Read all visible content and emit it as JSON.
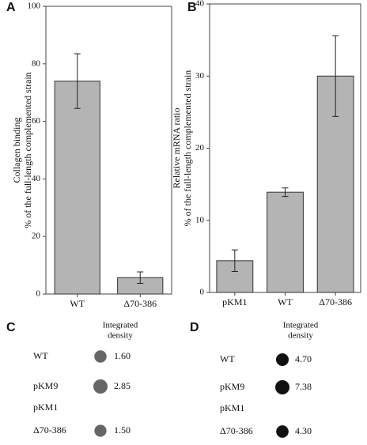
{
  "chart_data": [
    {
      "type": "bar",
      "panel": "A",
      "ylabel": [
        "Collagen binding",
        "% of the full-length complemented strain"
      ],
      "categories": [
        "WT",
        "Δ70-386"
      ],
      "values": [
        74,
        5.7
      ],
      "errors": [
        9.5,
        2
      ],
      "color": "#b4b4b4",
      "ylim": [
        0,
        100
      ],
      "yticks": [
        0,
        20,
        40,
        60,
        80,
        100
      ]
    },
    {
      "type": "bar",
      "panel": "B",
      "ylabel": [
        "Relative mRNA ratio",
        "% of the full-length complemented strain"
      ],
      "categories": [
        "pKM1",
        "WT",
        "Δ70-386"
      ],
      "values": [
        4.4,
        13.9,
        30
      ],
      "errors": [
        1.5,
        0.6,
        5.6
      ],
      "color": "#b4b4b4",
      "ylim": [
        0,
        40
      ],
      "yticks": [
        0,
        10,
        20,
        30,
        40
      ]
    }
  ],
  "blots": [
    {
      "panel": "C",
      "header": [
        "Integrated",
        "density"
      ],
      "labels": [
        "WT",
        "pKM9",
        "pKM1",
        "Δ70-386"
      ],
      "values": [
        1.6,
        2.85,
        null,
        1.5
      ],
      "value_labels": [
        "1.60",
        "2.85",
        null,
        "1.50"
      ],
      "color": "#666666"
    },
    {
      "panel": "D",
      "header": [
        "Integrated",
        "density"
      ],
      "labels": [
        "WT",
        "pKM9",
        "pKM1",
        "Δ70-386"
      ],
      "values": [
        4.7,
        7.38,
        null,
        4.3
      ],
      "value_labels": [
        "4.70",
        "7.38",
        null,
        "4.30"
      ],
      "color": "#111111"
    }
  ]
}
